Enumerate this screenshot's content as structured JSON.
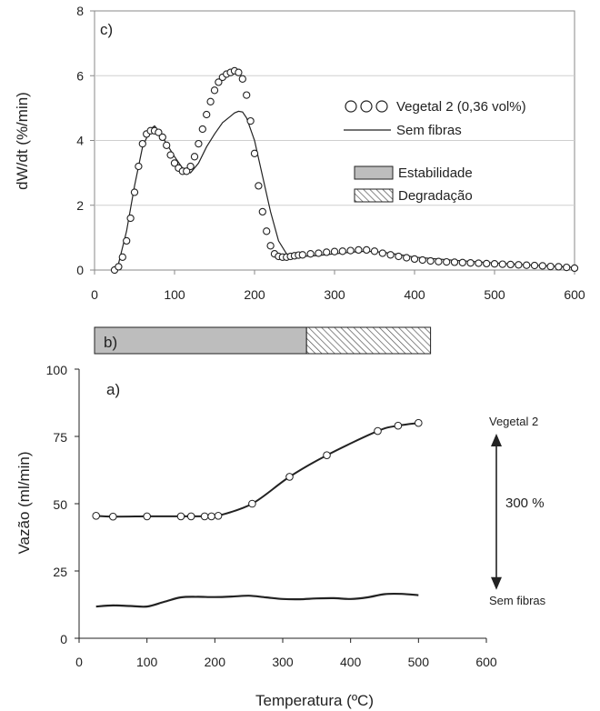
{
  "chart_data": [
    {
      "id": "c",
      "type": "scatter",
      "panel_label": "c)",
      "xlabel": "",
      "ylabel": "dW/dt (%/min)",
      "xlim": [
        0,
        600
      ],
      "ylim": [
        0,
        8
      ],
      "xticks": [
        0,
        100,
        200,
        300,
        400,
        500,
        600
      ],
      "yticks": [
        0,
        2,
        4,
        6,
        8
      ],
      "grid": "horizontal",
      "legend_position": "right",
      "series": [
        {
          "name": "Vegetal 2 (0,36 vol%)",
          "style": "open-circles",
          "x": [
            25,
            30,
            35,
            40,
            45,
            50,
            55,
            60,
            65,
            70,
            75,
            80,
            85,
            90,
            95,
            100,
            105,
            110,
            115,
            120,
            125,
            130,
            135,
            140,
            145,
            150,
            155,
            160,
            165,
            170,
            175,
            180,
            185,
            190,
            195,
            200,
            205,
            210,
            215,
            220,
            225,
            230,
            235,
            240,
            245,
            250,
            255,
            260,
            270,
            280,
            290,
            300,
            310,
            320,
            330,
            340,
            350,
            360,
            370,
            380,
            390,
            400,
            410,
            420,
            430,
            440,
            450,
            460,
            470,
            480,
            490,
            500,
            510,
            520,
            530,
            540,
            550,
            560,
            570,
            580,
            590,
            600
          ],
          "y": [
            0.0,
            0.1,
            0.4,
            0.9,
            1.6,
            2.4,
            3.2,
            3.9,
            4.2,
            4.3,
            4.3,
            4.25,
            4.1,
            3.85,
            3.55,
            3.3,
            3.15,
            3.05,
            3.05,
            3.2,
            3.5,
            3.9,
            4.35,
            4.8,
            5.2,
            5.55,
            5.8,
            5.95,
            6.05,
            6.1,
            6.15,
            6.1,
            5.9,
            5.4,
            4.6,
            3.6,
            2.6,
            1.8,
            1.2,
            0.75,
            0.5,
            0.42,
            0.4,
            0.4,
            0.42,
            0.44,
            0.46,
            0.47,
            0.5,
            0.52,
            0.55,
            0.57,
            0.58,
            0.6,
            0.62,
            0.62,
            0.58,
            0.52,
            0.47,
            0.42,
            0.38,
            0.34,
            0.31,
            0.28,
            0.26,
            0.25,
            0.24,
            0.23,
            0.22,
            0.21,
            0.2,
            0.19,
            0.18,
            0.17,
            0.16,
            0.15,
            0.14,
            0.13,
            0.11,
            0.1,
            0.08,
            0.06
          ]
        },
        {
          "name": "Sem fibras",
          "style": "line",
          "x": [
            25,
            30,
            40,
            50,
            60,
            70,
            75,
            80,
            90,
            100,
            110,
            120,
            130,
            140,
            150,
            160,
            170,
            175,
            180,
            185,
            190,
            200,
            210,
            220,
            230,
            240,
            250,
            260,
            280,
            300,
            320,
            340,
            360,
            380,
            400,
            450,
            500,
            550,
            600
          ],
          "y": [
            0.0,
            0.2,
            1.2,
            2.6,
            3.8,
            4.35,
            4.45,
            4.3,
            3.9,
            3.5,
            3.15,
            3.0,
            3.3,
            3.8,
            4.2,
            4.55,
            4.75,
            4.85,
            4.9,
            4.88,
            4.7,
            4.0,
            2.9,
            1.8,
            0.9,
            0.5,
            0.4,
            0.42,
            0.45,
            0.5,
            0.55,
            0.58,
            0.55,
            0.48,
            0.4,
            0.3,
            0.22,
            0.15,
            0.08
          ]
        }
      ],
      "bar_legend": [
        {
          "name": "Estabilidade",
          "fill": "#bdbdbd"
        },
        {
          "name": "Degradação",
          "fill": "hatch"
        }
      ]
    },
    {
      "id": "b",
      "type": "bar",
      "panel_label": "b)",
      "orientation": "horizontal",
      "segments": [
        {
          "name": "Estabilidade",
          "start": 0,
          "end": 265,
          "fill": "#bdbdbd"
        },
        {
          "name": "Degradação",
          "start": 265,
          "end": 420,
          "fill": "hatch"
        }
      ]
    },
    {
      "id": "a",
      "type": "line",
      "panel_label": "a)",
      "xlabel": "Temperatura (ºC)",
      "ylabel": "Vazão (ml/min)",
      "xlim": [
        0,
        600
      ],
      "ylim": [
        0,
        100
      ],
      "xticks": [
        0,
        100,
        200,
        300,
        400,
        500,
        600
      ],
      "yticks": [
        0,
        25,
        50,
        75,
        100
      ],
      "grid": "none",
      "series": [
        {
          "name": "Vegetal 2",
          "style": "line-open-markers",
          "x": [
            25,
            50,
            100,
            150,
            165,
            185,
            195,
            205,
            255,
            310,
            365,
            440,
            470,
            500
          ],
          "y": [
            45.5,
            45.2,
            45.3,
            45.3,
            45.3,
            45.3,
            45.3,
            45.5,
            50,
            60,
            68,
            77,
            79,
            80
          ]
        },
        {
          "name": "Sem fibras",
          "style": "line",
          "x": [
            25,
            50,
            75,
            100,
            125,
            150,
            175,
            200,
            225,
            250,
            275,
            300,
            325,
            350,
            375,
            400,
            425,
            450,
            475,
            500
          ],
          "y": [
            11.8,
            12.2,
            12.0,
            11.8,
            13.5,
            15.2,
            15.4,
            15.3,
            15.5,
            15.8,
            15.2,
            14.6,
            14.5,
            14.8,
            14.9,
            14.6,
            15.2,
            16.4,
            16.5,
            16.0
          ]
        }
      ],
      "annotation": {
        "text": "300 %",
        "arrow_from": 18,
        "arrow_to": 76,
        "upper_label": "Vegetal 2",
        "lower_label": "Sem fibras"
      }
    }
  ]
}
